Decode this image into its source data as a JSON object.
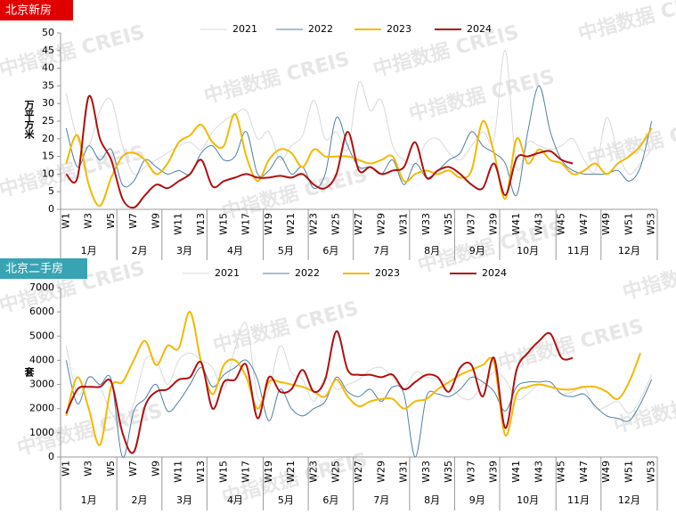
{
  "watermark": "中指数据 CREIS",
  "chart_data": [
    {
      "type": "line",
      "title": "北京新房",
      "title_color": "#e00000",
      "y_label": "万平方米",
      "categories": [
        "W1",
        null,
        "W3",
        null,
        "W5",
        null,
        "W7",
        null,
        "W9",
        null,
        "W11",
        null,
        "W13",
        null,
        "W15",
        null,
        "W17",
        null,
        "W19",
        null,
        "W21",
        null,
        "W23",
        null,
        "W25",
        null,
        "W27",
        null,
        "W29",
        null,
        "W31",
        null,
        "W33",
        null,
        "W35",
        null,
        "W37",
        null,
        "W39",
        null,
        "W41",
        null,
        "W43",
        null,
        "W45",
        null,
        "W47",
        null,
        "W49",
        null,
        "W51",
        null,
        "W53"
      ],
      "month_groups": [
        {
          "label": "1月",
          "from": 1,
          "to": 5
        },
        {
          "label": "2月",
          "from": 6,
          "to": 9
        },
        {
          "label": "3月",
          "from": 10,
          "to": 13
        },
        {
          "label": "4月",
          "from": 14,
          "to": 18
        },
        {
          "label": "5月",
          "from": 19,
          "to": 22
        },
        {
          "label": "6月",
          "from": 23,
          "to": 26
        },
        {
          "label": "7月",
          "from": 27,
          "to": 31
        },
        {
          "label": "8月",
          "from": 32,
          "to": 35
        },
        {
          "label": "9月",
          "from": 36,
          "to": 39
        },
        {
          "label": "10月",
          "from": 40,
          "to": 44
        },
        {
          "label": "11月",
          "from": 45,
          "to": 48
        },
        {
          "label": "12月",
          "from": 49,
          "to": 53
        }
      ],
      "ylim": [
        0,
        50
      ],
      "yticks": [
        0,
        5,
        10,
        15,
        20,
        25,
        30,
        35,
        40,
        45,
        50
      ],
      "series": [
        {
          "name": "2021",
          "color": "#d9d9d9",
          "width": 1,
          "values": [
            33,
            20,
            18,
            28,
            31,
            18,
            10,
            12,
            14,
            16,
            18,
            19,
            17,
            22,
            25,
            27,
            28,
            20,
            22,
            14,
            18,
            21,
            31,
            20,
            22,
            17,
            36,
            28,
            31,
            18,
            14,
            13,
            19,
            20,
            16,
            14,
            18,
            22,
            20,
            45,
            12,
            19,
            18,
            17,
            18,
            20,
            14,
            11,
            26,
            16,
            10,
            13,
            17
          ]
        },
        {
          "name": "2022",
          "color": "#4f81a3",
          "width": 1,
          "values": [
            23,
            12,
            18,
            14,
            17,
            7,
            8,
            14,
            12,
            10,
            11,
            10,
            16,
            18,
            14,
            15,
            22,
            10,
            11,
            15,
            10,
            12,
            6,
            10,
            26,
            18,
            12,
            12,
            10,
            14,
            7,
            13,
            9,
            11,
            14,
            16,
            22,
            18,
            16,
            13,
            4,
            22,
            35,
            22,
            14,
            11,
            10,
            10,
            10,
            11,
            8,
            12,
            25
          ]
        },
        {
          "name": "2023",
          "color": "#f5b800",
          "width": 2,
          "values": [
            13,
            21,
            7,
            1,
            9,
            15,
            16,
            14,
            10,
            13,
            19,
            21,
            24,
            19,
            18,
            27,
            15,
            8,
            14,
            17,
            16,
            12,
            17,
            15,
            15,
            15,
            14,
            13,
            14,
            15,
            8,
            10,
            11,
            10,
            11,
            9,
            11,
            25,
            16,
            3,
            20,
            13,
            17,
            14,
            13,
            10,
            11,
            13,
            10,
            13,
            15,
            18,
            23
          ]
        },
        {
          "name": "2024",
          "color": "#b01010",
          "width": 2,
          "values": [
            10,
            9,
            32,
            20,
            14,
            3,
            0.5,
            4,
            7,
            6,
            8,
            10,
            14,
            6.5,
            8,
            9,
            10,
            9,
            9,
            9.5,
            9,
            10,
            7,
            6,
            10,
            22,
            11,
            12,
            10,
            11,
            12,
            19,
            9,
            11,
            12,
            10,
            7,
            6,
            13,
            4,
            14.5,
            15,
            16,
            16.5,
            14,
            13,
            null,
            null,
            null,
            null,
            null,
            null,
            null
          ]
        }
      ]
    },
    {
      "type": "line",
      "title": "北京二手房",
      "title_color": "#38a3b3",
      "y_label": "套",
      "categories": [
        "W1",
        null,
        "W3",
        null,
        "W5",
        null,
        "W7",
        null,
        "W9",
        null,
        "W11",
        null,
        "W13",
        null,
        "W15",
        null,
        "W17",
        null,
        "W19",
        null,
        "W21",
        null,
        "W23",
        null,
        "W25",
        null,
        "W27",
        null,
        "W29",
        null,
        "W31",
        null,
        "W33",
        null,
        "W35",
        null,
        "W37",
        null,
        "W39",
        null,
        "W41",
        null,
        "W43",
        null,
        "W45",
        null,
        "W47",
        null,
        "W49",
        null,
        "W51",
        null,
        "W53"
      ],
      "month_groups": [
        {
          "label": "1月",
          "from": 1,
          "to": 5
        },
        {
          "label": "2月",
          "from": 6,
          "to": 9
        },
        {
          "label": "3月",
          "from": 10,
          "to": 13
        },
        {
          "label": "4月",
          "from": 14,
          "to": 18
        },
        {
          "label": "5月",
          "from": 19,
          "to": 22
        },
        {
          "label": "6月",
          "from": 23,
          "to": 26
        },
        {
          "label": "7月",
          "from": 27,
          "to": 31
        },
        {
          "label": "8月",
          "from": 32,
          "to": 35
        },
        {
          "label": "9月",
          "from": 36,
          "to": 39
        },
        {
          "label": "10月",
          "from": 40,
          "to": 44
        },
        {
          "label": "11月",
          "from": 45,
          "to": 48
        },
        {
          "label": "12月",
          "from": 49,
          "to": 53
        }
      ],
      "ylim": [
        0,
        7000
      ],
      "yticks": [
        0,
        1000,
        2000,
        3000,
        4000,
        5000,
        6000,
        7000
      ],
      "series": [
        {
          "name": "2021",
          "color": "#d9d9d9",
          "width": 1,
          "values": [
            4600,
            2600,
            3300,
            2900,
            1800,
            1400,
            2200,
            4000,
            4000,
            3000,
            4000,
            4300,
            4000,
            3700,
            2800,
            4500,
            5500,
            2500,
            2800,
            4600,
            3500,
            3200,
            2300,
            3300,
            2800,
            3000,
            3200,
            3600,
            3700,
            3300,
            2800,
            3500,
            3300,
            3200,
            3000,
            2500,
            2400,
            3000,
            3500,
            3200,
            2400,
            2600,
            3000,
            2900,
            2600,
            2700,
            2900,
            2000,
            2100,
            2300,
            1800,
            2400,
            3400
          ]
        },
        {
          "name": "2022",
          "color": "#4f81a3",
          "width": 1,
          "values": [
            4000,
            2200,
            3300,
            3000,
            3200,
            0,
            1900,
            2400,
            3000,
            1900,
            2300,
            3000,
            3700,
            2900,
            3400,
            3700,
            4000,
            3200,
            1500,
            2800,
            2000,
            1700,
            2000,
            2300,
            3300,
            2700,
            2500,
            2800,
            2300,
            2900,
            2600,
            0,
            2500,
            2600,
            2500,
            2800,
            3300,
            3100,
            2700,
            1900,
            2900,
            3100,
            3100,
            3100,
            2600,
            2500,
            2600,
            2100,
            1700,
            1600,
            1500,
            2200,
            3200
          ]
        },
        {
          "name": "2023",
          "color": "#f5b800",
          "width": 2,
          "values": [
            1700,
            3300,
            2000,
            500,
            2900,
            3100,
            4000,
            4800,
            3800,
            4600,
            4500,
            6000,
            3900,
            2600,
            3800,
            4000,
            3300,
            2000,
            3100,
            3100,
            3000,
            2900,
            2700,
            2500,
            3200,
            2500,
            2100,
            2300,
            2400,
            2400,
            2000,
            2300,
            2400,
            2800,
            3100,
            3400,
            3600,
            3800,
            3900,
            900,
            2600,
            2900,
            3000,
            2900,
            2800,
            2800,
            2900,
            2900,
            2700,
            2400,
            3100,
            4300,
            null
          ]
        },
        {
          "name": "2024",
          "color": "#b01010",
          "width": 2,
          "values": [
            1800,
            2800,
            2900,
            2900,
            3100,
            1000,
            200,
            2100,
            2700,
            2800,
            3200,
            3300,
            3900,
            2000,
            3100,
            3200,
            3800,
            1600,
            3300,
            2700,
            2800,
            3600,
            2700,
            3200,
            5200,
            3600,
            3400,
            3400,
            3300,
            3400,
            2800,
            3100,
            3400,
            3300,
            2700,
            3700,
            3800,
            2500,
            4100,
            1200,
            3600,
            4300,
            4800,
            5100,
            4100,
            4100,
            null,
            null,
            null,
            null,
            null,
            null,
            null
          ]
        }
      ]
    }
  ]
}
